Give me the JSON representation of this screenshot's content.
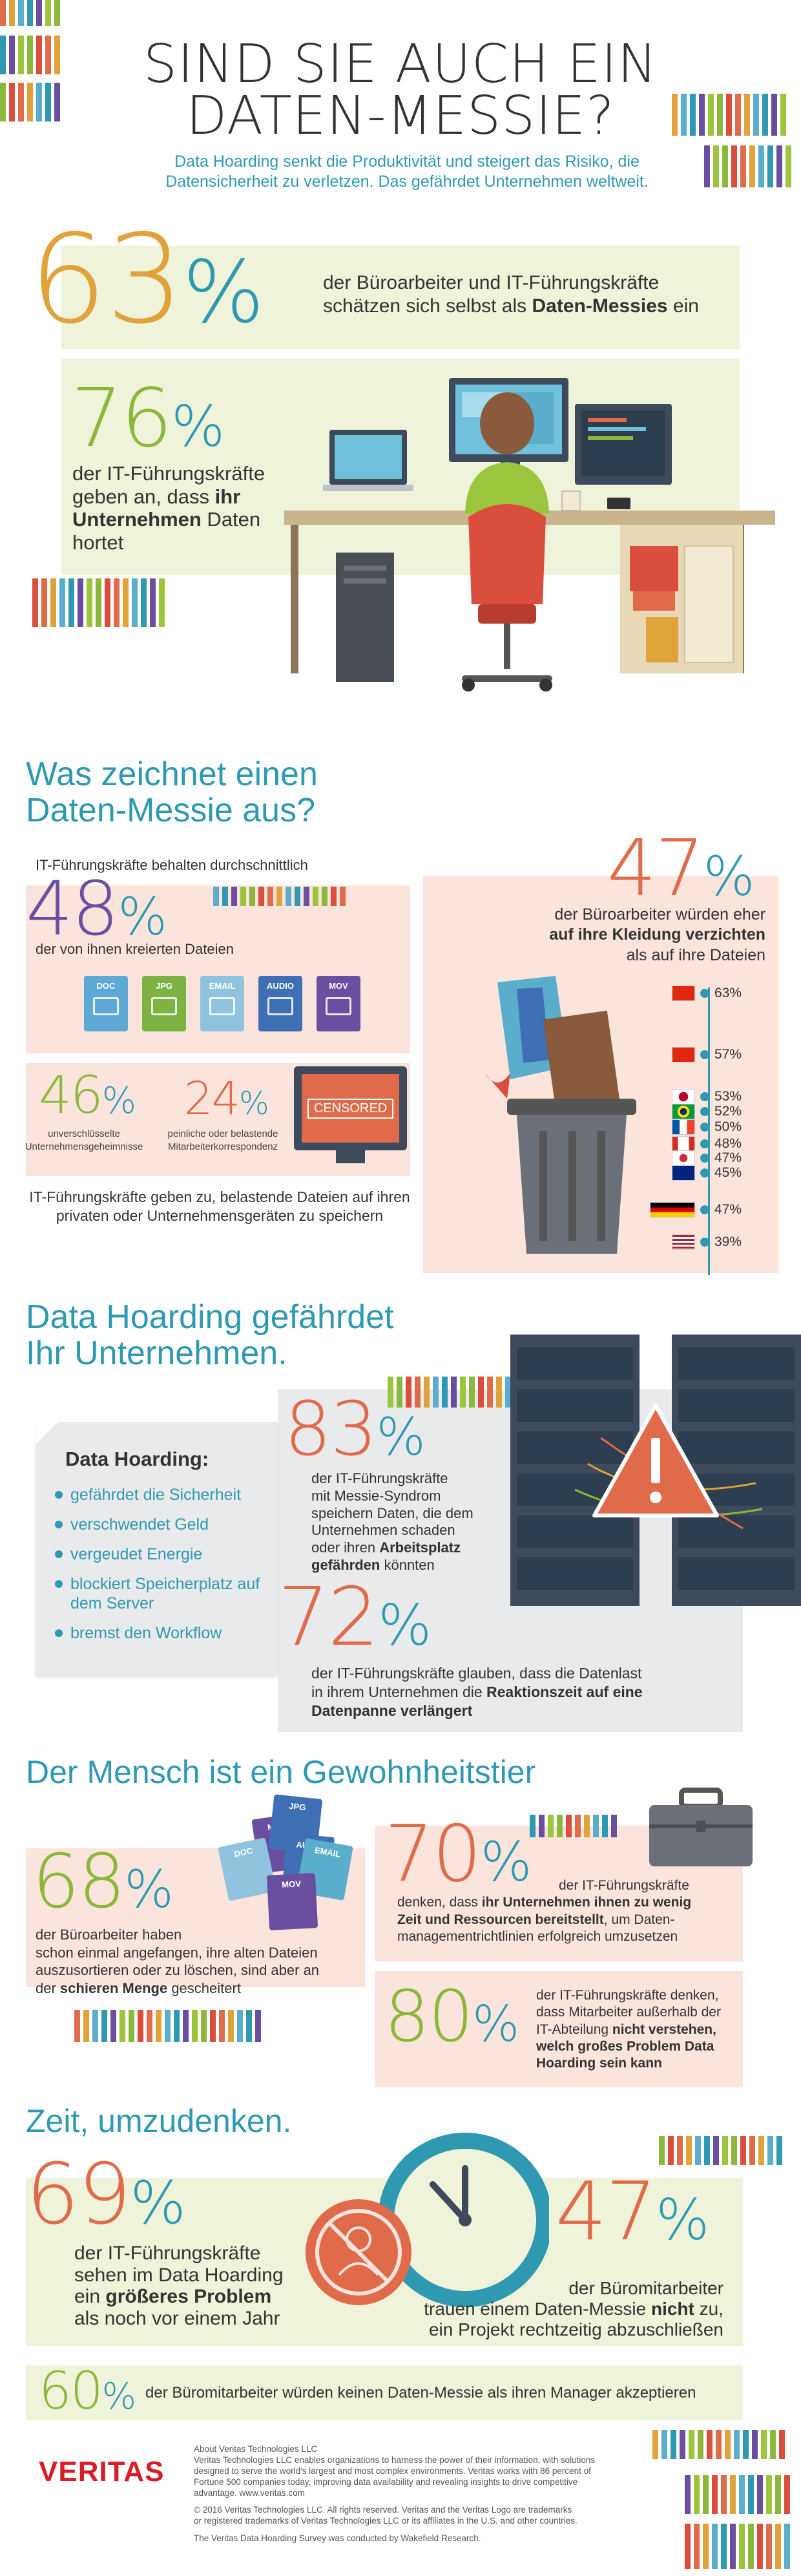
{
  "header": {
    "title_line1": "SIND SIE AUCH EIN",
    "title_line2": "DATEN-MESSIE?",
    "subtitle_line1": "Data Hoarding senkt die Produktivität und steigert das Risiko, die",
    "subtitle_line2": "Datensicherheit zu verletzen.  Das gefährdet Unternehmen weltweit."
  },
  "stat63": {
    "number": "63",
    "pct": "%",
    "line1": "der Büroarbeiter und IT-Führungskräfte",
    "line2_pre": "schätzen sich selbst als ",
    "line2_bold": "Daten-Messies",
    "line2_post": " ein"
  },
  "stat76": {
    "number": "76",
    "pct": "%",
    "line1": "der IT-Führungskräfte",
    "line2_pre": "geben an, dass ",
    "line2_bold": "ihr",
    "line3_bold": "Unternehmen",
    "line3_post": " Daten",
    "line4": "hortet"
  },
  "section1": {
    "title_line1": "Was zeichnet einen",
    "title_line2": "Daten-Messie aus?",
    "stat48_intro": "IT-Führungskräfte behalten durchschnittlich",
    "stat48_number": "48",
    "stat48_pct": "%",
    "stat48_text": "der von ihnen kreierten Dateien",
    "files": [
      {
        "label": "DOC",
        "color": "#5ea9d6"
      },
      {
        "label": "JPG",
        "color": "#7cb342"
      },
      {
        "label": "EMAIL",
        "color": "#8fc3de"
      },
      {
        "label": "AUDIO",
        "color": "#3f6fb5"
      },
      {
        "label": "MOV",
        "color": "#6a4fa0"
      }
    ],
    "stat46_number": "46",
    "stat46_pct": "%",
    "stat46_line1": "unverschlüsselte",
    "stat46_line2": "Unternehmensgeheimnisse",
    "stat24_number": "24",
    "stat24_pct": "%",
    "stat24_line1": "peinliche oder belastende",
    "stat24_line2": "Mitarbeiterkorrespondenz",
    "censored_label": "CENSORED",
    "footnote_line1": "IT-Führungskräfte geben zu, belastende Dateien auf ihren",
    "footnote_line2": "privaten oder Unternehmensgeräten zu speichern",
    "stat47_number": "47",
    "stat47_pct": "%",
    "stat47_line1": "der Büroarbeiter würden eher",
    "stat47_line2_bold": "auf ihre Kleidung verzichten",
    "stat47_line3": "als auf ihre Dateien",
    "countries": [
      {
        "value": "63%",
        "flag": "hongkong"
      },
      {
        "value": "57%",
        "flag": "china"
      },
      {
        "value": "53%",
        "flag": "japan"
      },
      {
        "value": "52%",
        "flag": "brazil"
      },
      {
        "value": "50%",
        "flag": "france"
      },
      {
        "value": "48%",
        "flag": "canada"
      },
      {
        "value": "47%",
        "flag": "korea"
      },
      {
        "value": "45%",
        "flag": "australia"
      },
      {
        "value": "47%",
        "flag": "germany-uk"
      },
      {
        "value": "39%",
        "flag": "usa"
      }
    ]
  },
  "section2": {
    "title_line1": "Data Hoarding gefährdet",
    "title_line2": "Ihr Unternehmen.",
    "card_title": "Data Hoarding:",
    "bullets": [
      "gefährdet die Sicherheit",
      "verschwendet Geld",
      "vergeudet Energie",
      "blockiert Speicherplatz auf dem Server",
      "bremst den Workflow"
    ],
    "stat83_number": "83",
    "stat83_pct": "%",
    "stat83_line1": "der IT-Führungskräfte",
    "stat83_line2": "mit Messie-Syndrom",
    "stat83_line3": "speichern Daten, die dem",
    "stat83_line4": "Unternehmen schaden",
    "stat83_line5_pre": "oder ihren ",
    "stat83_line5_bold": "Arbeitsplatz",
    "stat83_line6_bold": "gefährden",
    "stat83_line6_post": " könnten",
    "stat72_number": "72",
    "stat72_pct": "%",
    "stat72_line1": "der IT-Führungskräfte glauben, dass die Datenlast",
    "stat72_line2_pre": "in ihrem Unternehmen die ",
    "stat72_line2_bold": "Reaktionszeit auf eine",
    "stat72_line3_bold": "Datenpanne verlängert"
  },
  "section3": {
    "title": "Der Mensch ist ein Gewohnheitstier",
    "stat68_number": "68",
    "stat68_pct": "%",
    "stat68_line1": "der Büroarbeiter haben",
    "stat68_line2": "schon einmal angefangen, ihre alten Dateien",
    "stat68_line3": "auszusortieren oder zu löschen, sind aber an",
    "stat68_line4_pre": "der ",
    "stat68_line4_bold": "schieren Menge",
    "stat68_line4_post": " gescheitert",
    "stat70_number": "70",
    "stat70_pct": "%",
    "stat70_line1": "der IT-Führungskräfte",
    "stat70_line2_pre": "denken, dass ",
    "stat70_line2_bold": "ihr Unternehmen ihnen zu wenig",
    "stat70_line3_bold": "Zeit und Ressourcen bereitstellt",
    "stat70_line3_post": ", um Daten-",
    "stat70_line4": "managementrichtlinien erfolgreich umzusetzen",
    "stat80_number": "80",
    "stat80_pct": "%",
    "stat80_line1": "der IT-Führungskräfte denken,",
    "stat80_line2": "dass Mitarbeiter außerhalb der",
    "stat80_line3_pre": "IT-Abteilung ",
    "stat80_line3_bold": "nicht verstehen,",
    "stat80_line4_bold": "welch großes Problem Data",
    "stat80_line5_bold": "Hoarding sein kann",
    "file_labels": [
      "MOV",
      "JPG",
      "DOC",
      "AUDIO",
      "EMAIL",
      "MOV"
    ]
  },
  "section4": {
    "title": "Zeit, umzudenken.",
    "stat69_number": "69",
    "stat69_pct": "%",
    "stat69_line1": "der IT-Führungskräfte",
    "stat69_line2": "sehen im Data Hoarding",
    "stat69_line3_pre": "ein ",
    "stat69_line3_bold": "größeres Problem",
    "stat69_line4": "als noch vor einem Jahr",
    "stat47_number": "47",
    "stat47_pct": "%",
    "stat47_line1": "der Büromitarbeiter",
    "stat47_line2_pre": "trauen einem Daten-Messie ",
    "stat47_line2_bold": "nicht",
    "stat47_line2_post": " zu,",
    "stat47_line3": "ein Projekt rechtzeitig abzuschließen",
    "stat60_number": "60",
    "stat60_pct": "%",
    "stat60_text": "der Büromitarbeiter würden keinen Daten-Messie als ihren Manager akzeptieren"
  },
  "footer": {
    "logo": "VERITAS",
    "about_title": "About Veritas Technologies LLC",
    "about_line1": "Veritas Technologies LLC enables organizations to harness the power of their information, with solutions",
    "about_line2": "designed to serve the world's largest and most complex environments. Veritas works with 86 percent of",
    "about_line3": "Fortune 500 companies today, improving data availability and revealing insights to drive competitive",
    "about_line4": "advantage. www.veritas.com",
    "copyright_line1": "© 2016 Veritas Technologies LLC. All rights reserved. Veritas and the Veritas Logo are trademarks",
    "copyright_line2": "or registered trademarks of Veritas Technologies LLC or its affiliates in the U.S. and other countries.",
    "survey_note": "The Veritas Data Hoarding Survey was conducted by Wakefield Research."
  },
  "colors": {
    "teal": "#2f99b2",
    "green_band": "#eef3da",
    "pink_band": "#fbe4dc",
    "grey_band": "#e9eaec",
    "veritas_red": "#d71e28"
  }
}
